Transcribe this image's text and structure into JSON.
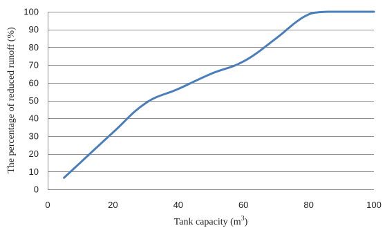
{
  "chart_data": {
    "type": "line",
    "title": "",
    "xlabel": "Tank capacity (m",
    "xlabel_sup": "3",
    "xlabel_suffix": ")",
    "ylabel": "The percentage of reduced runoff (%)",
    "xlim": [
      0,
      100
    ],
    "ylim": [
      0,
      100
    ],
    "x_ticks": [
      0,
      20,
      40,
      60,
      80,
      100
    ],
    "y_ticks": [
      0,
      10,
      20,
      30,
      40,
      50,
      60,
      70,
      80,
      90,
      100
    ],
    "grid": true,
    "series": [
      {
        "color": "#4a7ebb",
        "x": [
          5,
          10,
          20,
          30,
          40,
          50,
          60,
          70,
          76,
          80,
          83,
          86,
          90,
          95,
          100
        ],
        "y": [
          6.5,
          15,
          32,
          48.5,
          56.5,
          65,
          72,
          85,
          94,
          98.5,
          99.7,
          100,
          100,
          100,
          100
        ]
      }
    ]
  }
}
